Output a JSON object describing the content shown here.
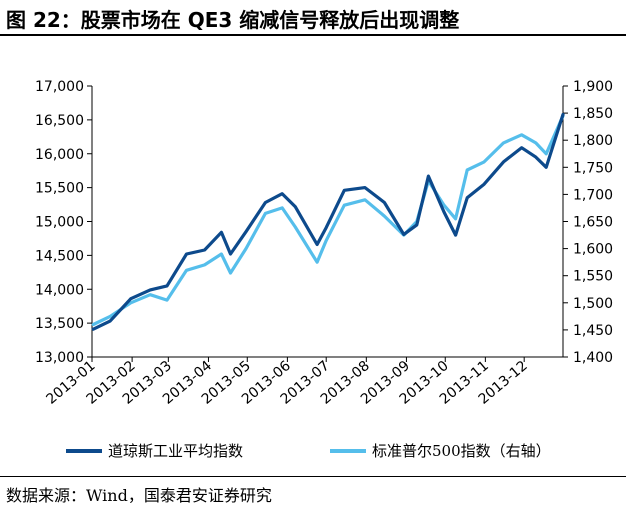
{
  "title": "图 22：股票市场在 QE3 缩减信号释放后出现调整",
  "source": "数据来源：Wind，国泰君安证券研究",
  "chart_data": {
    "type": "line",
    "title": "图 22：股票市场在 QE3 缩减信号释放后出现调整",
    "xlabel": "",
    "ylabel": "",
    "x_tick_labels": [
      "2013-01",
      "2013-02",
      "2013-03",
      "2013-04",
      "2013-05",
      "2013-06",
      "2013-07",
      "2013-08",
      "2013-09",
      "2013-10",
      "2013-11",
      "2013-12"
    ],
    "left_axis": {
      "range": [
        13000,
        17000
      ],
      "ticks": [
        13000,
        13500,
        14000,
        14500,
        15000,
        15500,
        16000,
        16500,
        17000
      ],
      "tick_labels": [
        "13,000",
        "13,500",
        "14,000",
        "14,500",
        "15,000",
        "15,500",
        "16,000",
        "16,500",
        "17,000"
      ]
    },
    "right_axis": {
      "range": [
        1400,
        1900
      ],
      "ticks": [
        1400,
        1450,
        1500,
        1550,
        1600,
        1650,
        1700,
        1750,
        1800,
        1850,
        1900
      ],
      "tick_labels": [
        "1,400",
        "1,450",
        "1,500",
        "1,550",
        "1,600",
        "1,650",
        "1,700",
        "1,750",
        "1,800",
        "1,850",
        "1,900"
      ]
    },
    "legend_position": "bottom",
    "grid": false,
    "series": [
      {
        "name": "道琼斯工业平均指数",
        "axis": "left",
        "color": "#0D4A8C",
        "x": [
          "2013-01-02",
          "2013-01-15",
          "2013-01-31",
          "2013-02-15",
          "2013-02-28",
          "2013-03-15",
          "2013-03-29",
          "2013-04-11",
          "2013-04-18",
          "2013-04-30",
          "2013-05-15",
          "2013-05-28",
          "2013-06-07",
          "2013-06-24",
          "2013-07-01",
          "2013-07-15",
          "2013-07-31",
          "2013-08-15",
          "2013-08-30",
          "2013-09-09",
          "2013-09-18",
          "2013-09-30",
          "2013-10-09",
          "2013-10-18",
          "2013-10-31",
          "2013-11-15",
          "2013-11-29",
          "2013-12-10",
          "2013-12-18",
          "2013-12-31"
        ],
        "values": [
          13410,
          13530,
          13860,
          13990,
          14050,
          14520,
          14580,
          14840,
          14520,
          14850,
          15280,
          15410,
          15220,
          14660,
          14910,
          15460,
          15500,
          15280,
          14810,
          14950,
          15670,
          15140,
          14800,
          15350,
          15550,
          15880,
          16090,
          15950,
          15800,
          16580
        ]
      },
      {
        "name": "标准普尔500指数（右轴）",
        "axis": "right",
        "color": "#55BEEB",
        "x": [
          "2013-01-02",
          "2013-01-15",
          "2013-01-31",
          "2013-02-15",
          "2013-02-28",
          "2013-03-15",
          "2013-03-29",
          "2013-04-11",
          "2013-04-18",
          "2013-04-30",
          "2013-05-15",
          "2013-05-28",
          "2013-06-07",
          "2013-06-24",
          "2013-07-01",
          "2013-07-15",
          "2013-07-31",
          "2013-08-15",
          "2013-08-30",
          "2013-09-09",
          "2013-09-18",
          "2013-09-30",
          "2013-10-09",
          "2013-10-18",
          "2013-10-31",
          "2013-11-15",
          "2013-11-29",
          "2013-12-10",
          "2013-12-18",
          "2013-12-31"
        ],
        "values": [
          1460,
          1475,
          1500,
          1515,
          1505,
          1560,
          1570,
          1590,
          1555,
          1600,
          1665,
          1675,
          1640,
          1575,
          1615,
          1680,
          1690,
          1660,
          1625,
          1650,
          1725,
          1680,
          1655,
          1745,
          1760,
          1795,
          1810,
          1795,
          1775,
          1845
        ]
      }
    ]
  }
}
